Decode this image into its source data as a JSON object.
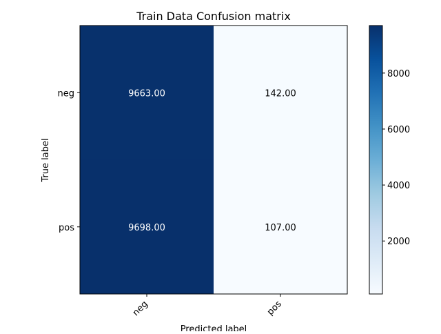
{
  "chart_data": {
    "type": "heatmap",
    "title": "Train Data Confusion matrix",
    "xlabel": "Predicted label",
    "ylabel": "True label",
    "x_categories": [
      "neg",
      "pos"
    ],
    "y_categories": [
      "neg",
      "pos"
    ],
    "values": [
      [
        9663,
        142
      ],
      [
        9698,
        107
      ]
    ],
    "cell_labels": [
      [
        "9663.00",
        "142.00"
      ],
      [
        "9698.00",
        "107.00"
      ]
    ],
    "colormap": "Blues",
    "colorbar": {
      "range": [
        107,
        9698
      ],
      "ticks": [
        2000,
        4000,
        6000,
        8000
      ],
      "tick_labels": [
        "2000",
        "4000",
        "6000",
        "8000"
      ]
    },
    "grid": false,
    "x_tick_rotation_deg": 45
  }
}
